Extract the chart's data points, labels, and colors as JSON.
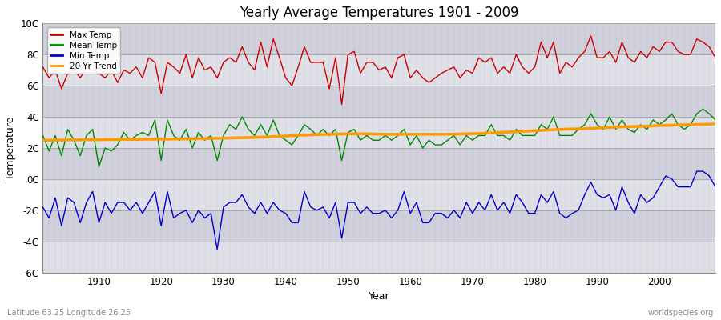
{
  "title": "Yearly Average Temperatures 1901 - 2009",
  "xlabel": "Year",
  "ylabel": "Temperature",
  "subtitle_left": "Latitude 63.25 Longitude 26.25",
  "subtitle_right": "worldspecies.org",
  "ylim": [
    -6,
    10
  ],
  "yticks": [
    -6,
    -4,
    -2,
    0,
    2,
    4,
    6,
    8,
    10
  ],
  "ytick_labels": [
    "-6C",
    "-4C",
    "-2C",
    "0C",
    "2C",
    "4C",
    "6C",
    "8C",
    "10C"
  ],
  "xlim": [
    1901,
    2009
  ],
  "xticks": [
    1910,
    1920,
    1930,
    1940,
    1950,
    1960,
    1970,
    1980,
    1990,
    2000
  ],
  "legend_entries": [
    "Max Temp",
    "Mean Temp",
    "Min Temp",
    "20 Yr Trend"
  ],
  "legend_colors": [
    "#cc0000",
    "#008800",
    "#0000cc",
    "#ff9900"
  ],
  "max_temp_color": "#cc0000",
  "mean_temp_color": "#008800",
  "min_temp_color": "#0000cc",
  "trend_color": "#ff9900",
  "band_colors": [
    "#e8e8e8",
    "#d8d8d8"
  ],
  "years": [
    1901,
    1902,
    1903,
    1904,
    1905,
    1906,
    1907,
    1908,
    1909,
    1910,
    1911,
    1912,
    1913,
    1914,
    1915,
    1916,
    1917,
    1918,
    1919,
    1920,
    1921,
    1922,
    1923,
    1924,
    1925,
    1926,
    1927,
    1928,
    1929,
    1930,
    1931,
    1932,
    1933,
    1934,
    1935,
    1936,
    1937,
    1938,
    1939,
    1940,
    1941,
    1942,
    1943,
    1944,
    1945,
    1946,
    1947,
    1948,
    1949,
    1950,
    1951,
    1952,
    1953,
    1954,
    1955,
    1956,
    1957,
    1958,
    1959,
    1960,
    1961,
    1962,
    1963,
    1964,
    1965,
    1966,
    1967,
    1968,
    1969,
    1970,
    1971,
    1972,
    1973,
    1974,
    1975,
    1976,
    1977,
    1978,
    1979,
    1980,
    1981,
    1982,
    1983,
    1984,
    1985,
    1986,
    1987,
    1988,
    1989,
    1990,
    1991,
    1992,
    1993,
    1994,
    1995,
    1996,
    1997,
    1998,
    1999,
    2000,
    2001,
    2002,
    2003,
    2004,
    2005,
    2006,
    2007,
    2008,
    2009
  ],
  "max_temp": [
    7.2,
    6.5,
    7.0,
    5.8,
    6.8,
    7.0,
    6.5,
    7.2,
    7.0,
    6.8,
    6.5,
    7.0,
    6.2,
    7.0,
    6.8,
    7.2,
    6.5,
    7.8,
    7.5,
    5.5,
    7.5,
    7.2,
    6.8,
    8.0,
    6.5,
    7.8,
    7.0,
    7.2,
    6.5,
    7.5,
    7.8,
    7.5,
    8.5,
    7.5,
    7.0,
    8.8,
    7.2,
    9.0,
    7.8,
    6.5,
    6.0,
    7.2,
    8.5,
    7.5,
    7.5,
    7.5,
    5.8,
    7.8,
    4.8,
    8.0,
    8.2,
    6.8,
    7.5,
    7.5,
    7.0,
    7.2,
    6.5,
    7.8,
    8.0,
    6.5,
    7.0,
    6.5,
    6.2,
    6.5,
    6.8,
    7.0,
    7.2,
    6.5,
    7.0,
    6.8,
    7.8,
    7.5,
    7.8,
    6.8,
    7.2,
    6.8,
    8.0,
    7.2,
    6.8,
    7.2,
    8.8,
    7.8,
    8.8,
    6.8,
    7.5,
    7.2,
    7.8,
    8.2,
    9.2,
    7.8,
    7.8,
    8.2,
    7.5,
    8.8,
    7.8,
    7.5,
    8.2,
    7.8,
    8.5,
    8.2,
    8.8,
    8.8,
    8.2,
    8.0,
    8.0,
    9.0,
    8.8,
    8.5,
    7.8
  ],
  "mean_temp": [
    2.8,
    1.8,
    2.8,
    1.5,
    3.2,
    2.5,
    1.5,
    2.8,
    3.2,
    0.8,
    2.0,
    1.8,
    2.2,
    3.0,
    2.5,
    2.8,
    3.0,
    2.8,
    3.8,
    1.2,
    3.8,
    2.8,
    2.5,
    3.2,
    2.0,
    3.0,
    2.5,
    2.8,
    1.2,
    2.8,
    3.5,
    3.2,
    4.0,
    3.2,
    2.8,
    3.5,
    2.8,
    3.8,
    2.8,
    2.5,
    2.2,
    2.8,
    3.5,
    3.2,
    2.8,
    3.2,
    2.8,
    3.2,
    1.2,
    3.0,
    3.2,
    2.5,
    2.8,
    2.5,
    2.5,
    2.8,
    2.5,
    2.8,
    3.2,
    2.2,
    2.8,
    2.0,
    2.5,
    2.2,
    2.2,
    2.5,
    2.8,
    2.2,
    2.8,
    2.5,
    2.8,
    2.8,
    3.5,
    2.8,
    2.8,
    2.5,
    3.2,
    2.8,
    2.8,
    2.8,
    3.5,
    3.2,
    4.0,
    2.8,
    2.8,
    2.8,
    3.2,
    3.5,
    4.2,
    3.5,
    3.2,
    4.0,
    3.2,
    3.8,
    3.2,
    3.0,
    3.5,
    3.2,
    3.8,
    3.5,
    3.8,
    4.2,
    3.5,
    3.2,
    3.5,
    4.2,
    4.5,
    4.2,
    3.8
  ],
  "min_temp": [
    -1.8,
    -2.5,
    -1.2,
    -3.0,
    -1.2,
    -1.5,
    -2.8,
    -1.5,
    -0.8,
    -2.8,
    -1.5,
    -2.2,
    -1.5,
    -1.5,
    -2.0,
    -1.5,
    -2.2,
    -1.5,
    -0.8,
    -3.0,
    -0.8,
    -2.5,
    -2.2,
    -2.0,
    -2.8,
    -2.0,
    -2.5,
    -2.2,
    -4.5,
    -1.8,
    -1.5,
    -1.5,
    -1.0,
    -1.8,
    -2.2,
    -1.5,
    -2.2,
    -1.5,
    -2.0,
    -2.2,
    -2.8,
    -2.8,
    -0.8,
    -1.8,
    -2.0,
    -1.8,
    -2.5,
    -1.5,
    -3.8,
    -1.5,
    -1.5,
    -2.2,
    -1.8,
    -2.2,
    -2.2,
    -2.0,
    -2.5,
    -2.0,
    -0.8,
    -2.2,
    -1.5,
    -2.8,
    -2.8,
    -2.2,
    -2.2,
    -2.5,
    -2.0,
    -2.5,
    -1.5,
    -2.2,
    -1.5,
    -2.0,
    -1.0,
    -2.0,
    -1.5,
    -2.2,
    -1.0,
    -1.5,
    -2.2,
    -2.2,
    -1.0,
    -1.5,
    -0.8,
    -2.2,
    -2.5,
    -2.2,
    -2.0,
    -1.0,
    -0.2,
    -1.0,
    -1.2,
    -1.0,
    -2.0,
    -0.5,
    -1.5,
    -2.2,
    -1.0,
    -1.5,
    -1.2,
    -0.5,
    0.2,
    0.0,
    -0.5,
    -0.5,
    -0.5,
    0.5,
    0.5,
    0.2,
    -0.5
  ],
  "trend": [
    2.5,
    2.5,
    2.51,
    2.51,
    2.52,
    2.52,
    2.52,
    2.53,
    2.53,
    2.53,
    2.54,
    2.54,
    2.54,
    2.55,
    2.55,
    2.55,
    2.56,
    2.56,
    2.57,
    2.57,
    2.57,
    2.58,
    2.58,
    2.59,
    2.59,
    2.6,
    2.6,
    2.61,
    2.62,
    2.63,
    2.64,
    2.65,
    2.66,
    2.67,
    2.68,
    2.7,
    2.71,
    2.73,
    2.75,
    2.77,
    2.79,
    2.81,
    2.83,
    2.84,
    2.86,
    2.87,
    2.88,
    2.89,
    2.9,
    2.91,
    2.91,
    2.91,
    2.91,
    2.9,
    2.89,
    2.88,
    2.88,
    2.88,
    2.88,
    2.88,
    2.88,
    2.88,
    2.88,
    2.88,
    2.88,
    2.88,
    2.89,
    2.9,
    2.91,
    2.92,
    2.93,
    2.95,
    2.97,
    2.99,
    3.01,
    3.03,
    3.05,
    3.07,
    3.09,
    3.11,
    3.13,
    3.15,
    3.17,
    3.19,
    3.21,
    3.22,
    3.23,
    3.24,
    3.26,
    3.28,
    3.3,
    3.32,
    3.34,
    3.36,
    3.37,
    3.38,
    3.39,
    3.4,
    3.42,
    3.44,
    3.45,
    3.46,
    3.48,
    3.49,
    3.5,
    3.51,
    3.52,
    3.53,
    3.54
  ]
}
